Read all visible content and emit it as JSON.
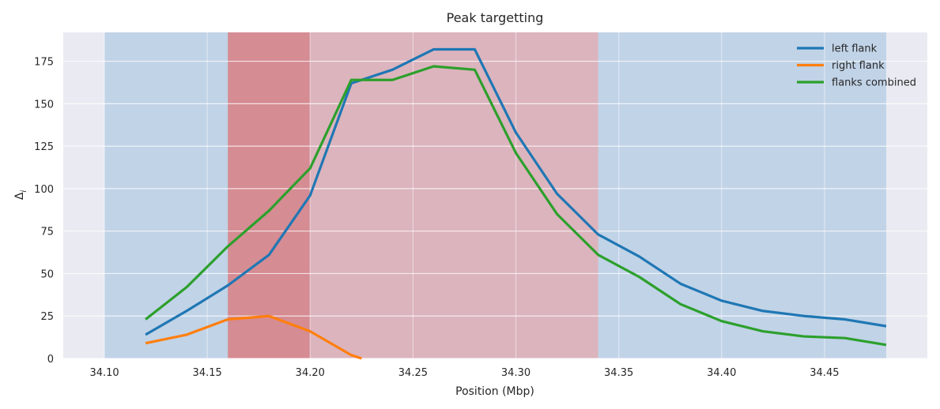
{
  "chart_data": {
    "type": "line",
    "title": "Peak targetting",
    "xlabel": "Position (Mbp)",
    "ylabel": "Δ",
    "ylabel_subscript": "i",
    "xlim": [
      34.08,
      34.5
    ],
    "ylim": [
      0,
      192
    ],
    "x_ticks": [
      34.1,
      34.15,
      34.2,
      34.25,
      34.3,
      34.35,
      34.4,
      34.45
    ],
    "x_tick_labels": [
      "34.10",
      "34.15",
      "34.20",
      "34.25",
      "34.30",
      "34.35",
      "34.40",
      "34.45"
    ],
    "y_ticks": [
      0,
      25,
      50,
      75,
      100,
      125,
      150,
      175
    ],
    "y_tick_labels": [
      "0",
      "25",
      "50",
      "75",
      "100",
      "125",
      "150",
      "175"
    ],
    "grid": true,
    "legend_position": "top-right",
    "background_color": "#eaeaf2",
    "shaded_regions": [
      {
        "x0": 34.1,
        "x1": 34.48,
        "color": "#9ebfdf",
        "opacity": 0.55
      },
      {
        "x0": 34.2,
        "x1": 34.34,
        "color": "#f29a9a",
        "opacity": 0.55
      },
      {
        "x0": 34.16,
        "x1": 34.2,
        "color": "#e06666",
        "opacity": 0.65
      }
    ],
    "series": [
      {
        "name": "left flank",
        "color": "#1f77b4",
        "x": [
          34.12,
          34.14,
          34.16,
          34.18,
          34.2,
          34.22,
          34.24,
          34.26,
          34.28,
          34.3,
          34.32,
          34.34,
          34.36,
          34.38,
          34.4,
          34.42,
          34.44,
          34.46,
          34.48
        ],
        "y": [
          14,
          28,
          43,
          61,
          96,
          162,
          170,
          182,
          182,
          133,
          97,
          73,
          60,
          44,
          34,
          28,
          25,
          23,
          19
        ]
      },
      {
        "name": "right flank",
        "color": "#ff7f0e",
        "x": [
          34.12,
          34.14,
          34.16,
          34.18,
          34.2,
          34.22,
          34.225
        ],
        "y": [
          9,
          14,
          23,
          25,
          16,
          2,
          0
        ]
      },
      {
        "name": "flanks combined",
        "color": "#2ca02c",
        "x": [
          34.12,
          34.14,
          34.16,
          34.18,
          34.2,
          34.22,
          34.24,
          34.26,
          34.28,
          34.3,
          34.32,
          34.34,
          34.36,
          34.38,
          34.4,
          34.42,
          34.44,
          34.46,
          34.48
        ],
        "y": [
          23,
          42,
          66,
          87,
          112,
          164,
          164,
          172,
          170,
          121,
          85,
          61,
          48,
          32,
          22,
          16,
          13,
          12,
          8
        ]
      }
    ]
  }
}
